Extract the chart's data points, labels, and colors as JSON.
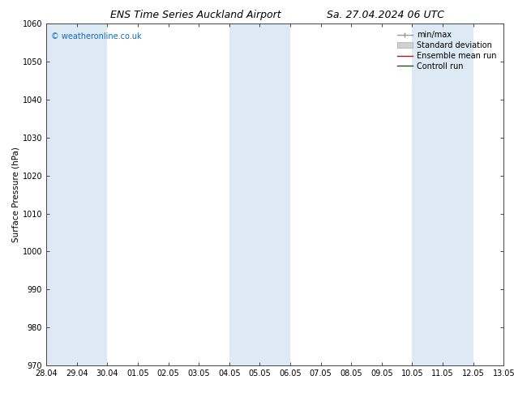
{
  "title_left": "ENS Time Series Auckland Airport",
  "title_right": "Sa. 27.04.2024 06 UTC",
  "ylabel": "Surface Pressure (hPa)",
  "ylim": [
    970,
    1060
  ],
  "yticks": [
    970,
    980,
    990,
    1000,
    1010,
    1020,
    1030,
    1040,
    1050,
    1060
  ],
  "xtick_labels": [
    "28.04",
    "29.04",
    "30.04",
    "01.05",
    "02.05",
    "03.05",
    "04.05",
    "05.05",
    "06.05",
    "07.05",
    "08.05",
    "09.05",
    "10.05",
    "11.05",
    "12.05",
    "13.05"
  ],
  "n_days": 16,
  "band_color": "#ddeaf5",
  "background_color": "#ffffff",
  "watermark": "© weatheronline.co.uk",
  "watermark_color": "#1a6bb5",
  "legend_items": [
    {
      "label": "min/max",
      "color": "#aaaaaa",
      "style": "line"
    },
    {
      "label": "Standard deviation",
      "color": "#cccccc",
      "style": "bar"
    },
    {
      "label": "Ensemble mean run",
      "color": "#ff0000",
      "style": "line"
    },
    {
      "label": "Controll run",
      "color": "#008000",
      "style": "line"
    }
  ],
  "title_fontsize": 9,
  "axis_fontsize": 7.5,
  "tick_fontsize": 7,
  "legend_fontsize": 7
}
